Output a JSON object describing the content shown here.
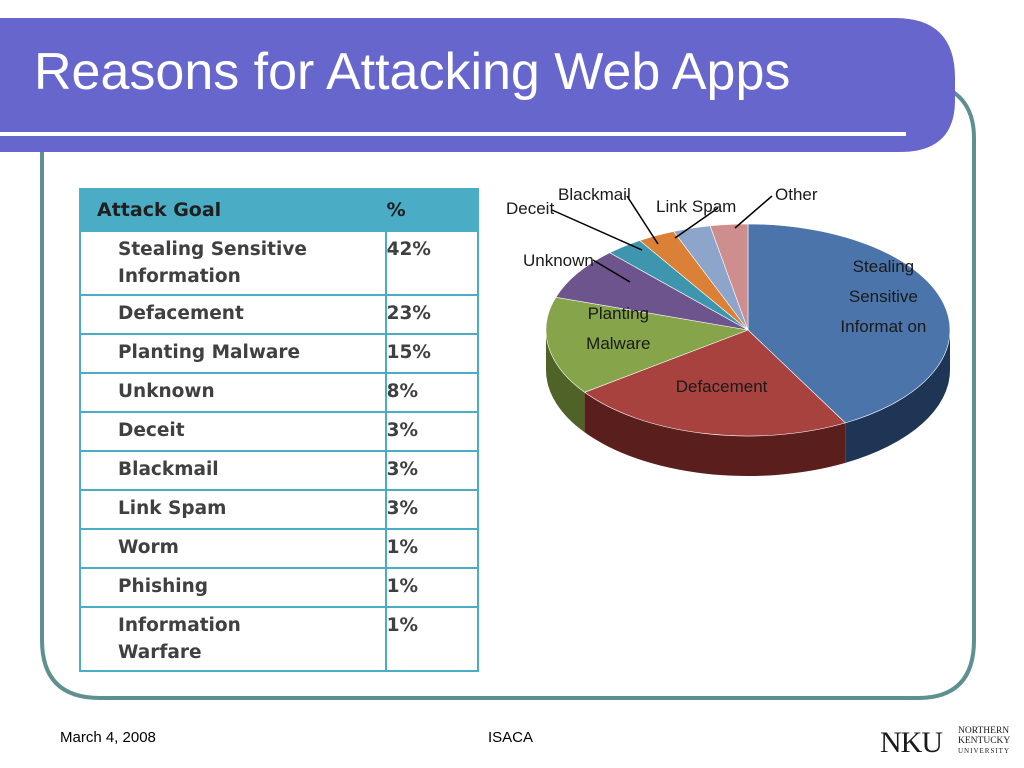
{
  "slide": {
    "title": "Reasons for Attacking Web Apps",
    "colors": {
      "title_bar": "#6666cc",
      "frame": "#5f9090",
      "table_header": "#4bacc6"
    }
  },
  "table": {
    "header_goal": "Attack Goal",
    "header_pct": "%",
    "rows": [
      {
        "goal_line1": "Stealing Sensitive",
        "goal_line2": "Information",
        "pct": "42%"
      },
      {
        "goal_line1": "Defacement",
        "goal_line2": "",
        "pct": "23%"
      },
      {
        "goal_line1": "Planting Malware",
        "goal_line2": "",
        "pct": "15%"
      },
      {
        "goal_line1": "Unknown",
        "goal_line2": "",
        "pct": "8%"
      },
      {
        "goal_line1": "Deceit",
        "goal_line2": "",
        "pct": "3%"
      },
      {
        "goal_line1": "Blackmail",
        "goal_line2": "",
        "pct": "3%"
      },
      {
        "goal_line1": "Link Spam",
        "goal_line2": "",
        "pct": "3%"
      },
      {
        "goal_line1": "Worm",
        "goal_line2": "",
        "pct": "1%"
      },
      {
        "goal_line1": "Phishing",
        "goal_line2": "",
        "pct": "1%"
      },
      {
        "goal_line1": "Information",
        "goal_line2": "Warfare",
        "pct": "1%"
      }
    ]
  },
  "chart_data": {
    "type": "pie",
    "slices": [
      {
        "label_lines": [
          "Stealing",
          "Sensitive",
          "Informat on"
        ],
        "value": 42,
        "color": "#4a74aa",
        "side": "#1f3555",
        "placement": "inside"
      },
      {
        "label_lines": [
          "Defacement"
        ],
        "value": 23,
        "color": "#a8423f",
        "side": "#5a1f1d",
        "placement": "inside"
      },
      {
        "label_lines": [
          "Planting",
          "Malware"
        ],
        "value": 15,
        "color": "#86a44a",
        "side": "#4f6328",
        "placement": "inside"
      },
      {
        "label_lines": [
          "Unknown"
        ],
        "value": 8,
        "color": "#6e548d",
        "side": "#3c2d50",
        "placement": "outside"
      },
      {
        "label_lines": [
          "Deceit"
        ],
        "value": 3,
        "color": "#3d96ae",
        "side": "#1f5261",
        "placement": "outside"
      },
      {
        "label_lines": [
          "Blackmail"
        ],
        "value": 3,
        "color": "#da8137",
        "side": "#7a4418",
        "placement": "outside"
      },
      {
        "label_lines": [
          "Link Spam"
        ],
        "value": 3,
        "color": "#8ea5cb",
        "side": "#55627a",
        "placement": "outside"
      },
      {
        "label_lines": [
          "Other"
        ],
        "value": 3,
        "color": "#ce8e8d",
        "side": "#7a5050",
        "placement": "outside"
      }
    ]
  },
  "footer": {
    "date": "March 4, 2008",
    "center": "ISACA",
    "logo_letters": "NKU",
    "logo_line1": "NORTHERN",
    "logo_line2": "KENTUCKY",
    "logo_line3": "UNIVERSITY"
  }
}
